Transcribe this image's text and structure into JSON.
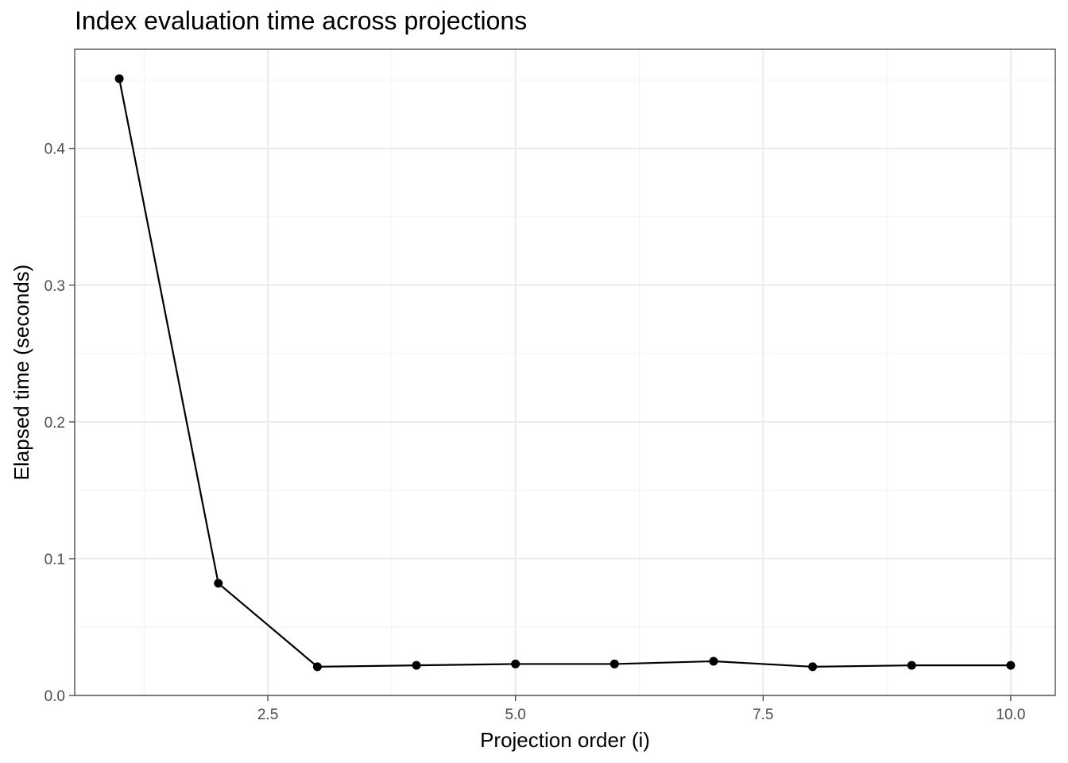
{
  "chart_data": {
    "type": "line",
    "title": "Index evaluation time across projections",
    "xlabel": "Projection order (i)",
    "ylabel": "Elapsed time (seconds)",
    "xlim": [
      0.55,
      10.45
    ],
    "ylim": [
      0.0,
      0.4725
    ],
    "x_ticks": [
      2.5,
      5.0,
      7.5,
      10.0
    ],
    "x_tick_labels": [
      "2.5",
      "5.0",
      "7.5",
      "10.0"
    ],
    "x_minor_ticks": [
      1.25,
      3.75,
      6.25,
      8.75
    ],
    "y_ticks": [
      0.0,
      0.1,
      0.2,
      0.3,
      0.4
    ],
    "y_tick_labels": [
      "0.0",
      "0.1",
      "0.2",
      "0.3",
      "0.4"
    ],
    "y_minor_ticks": [
      0.05,
      0.15,
      0.25,
      0.35,
      0.45
    ],
    "grid": true,
    "series": [
      {
        "x": [
          1,
          2,
          3,
          4,
          5,
          6,
          7,
          8,
          9,
          10
        ],
        "values": [
          0.451,
          0.082,
          0.021,
          0.022,
          0.023,
          0.023,
          0.025,
          0.021,
          0.022,
          0.022
        ]
      }
    ],
    "colors": {
      "line": "#000000",
      "grid_major": "#ebebeb",
      "grid_minor": "#f2f2f2",
      "panel_border": "#333333"
    }
  }
}
